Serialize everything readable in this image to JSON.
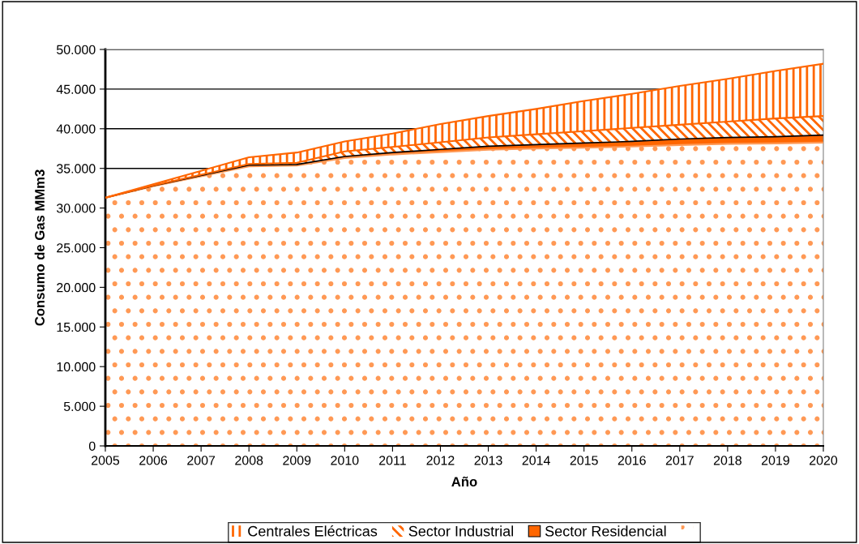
{
  "chart_data": {
    "type": "area",
    "stacked": true,
    "xlabel": "Año",
    "ylabel": "Consumo de Gas MMm3",
    "x": [
      2005,
      2006,
      2007,
      2008,
      2009,
      2010,
      2011,
      2012,
      2013,
      2014,
      2015,
      2016,
      2017,
      2018,
      2019,
      2020
    ],
    "series": [
      {
        "color": "#ff9955",
        "values": [
          31300,
          32750,
          34000,
          35250,
          35350,
          36300,
          36750,
          37050,
          37350,
          37500,
          37600,
          37750,
          37950,
          38100,
          38150,
          38250
        ]
      },
      {
        "name": "Sector Residencial",
        "color": "#ff6600",
        "values": [
          0,
          50,
          100,
          150,
          150,
          200,
          250,
          350,
          450,
          500,
          600,
          650,
          750,
          800,
          850,
          950
        ]
      },
      {
        "name": "Sector Industrial",
        "color": "#ff6600",
        "values": [
          0,
          50,
          100,
          150,
          200,
          650,
          700,
          900,
          1100,
          1300,
          1500,
          1700,
          1800,
          2000,
          2300,
          2400
        ]
      },
      {
        "name": "Centrales Eléctricas",
        "color": "#ff6600",
        "values": [
          0,
          150,
          500,
          850,
          1300,
          1250,
          1700,
          2300,
          2700,
          3200,
          3800,
          4300,
          4900,
          5400,
          6000,
          6600
        ]
      }
    ],
    "xlim": [
      2005,
      2020
    ],
    "xticks": [
      2005,
      2006,
      2007,
      2008,
      2009,
      2010,
      2011,
      2012,
      2013,
      2014,
      2015,
      2016,
      2017,
      2018,
      2019,
      2020
    ],
    "ylim": [
      0,
      50000
    ],
    "yticks": [
      0,
      {
        "value": 5000,
        "label": "5.000"
      },
      {
        "value": 10000,
        "label": "10.000"
      },
      {
        "value": 15000,
        "label": "15.000"
      },
      {
        "value": 20000,
        "label": "20.000"
      },
      {
        "value": 25000,
        "label": "25.000"
      },
      {
        "value": 30000,
        "label": "30.000"
      },
      {
        "value": 35000,
        "label": "35.000"
      },
      {
        "value": 40000,
        "label": "40.000"
      },
      {
        "value": 45000,
        "label": "45.000"
      },
      {
        "value": 50000,
        "label": "50.000"
      }
    ],
    "grid": "y",
    "legend": "bottom"
  }
}
